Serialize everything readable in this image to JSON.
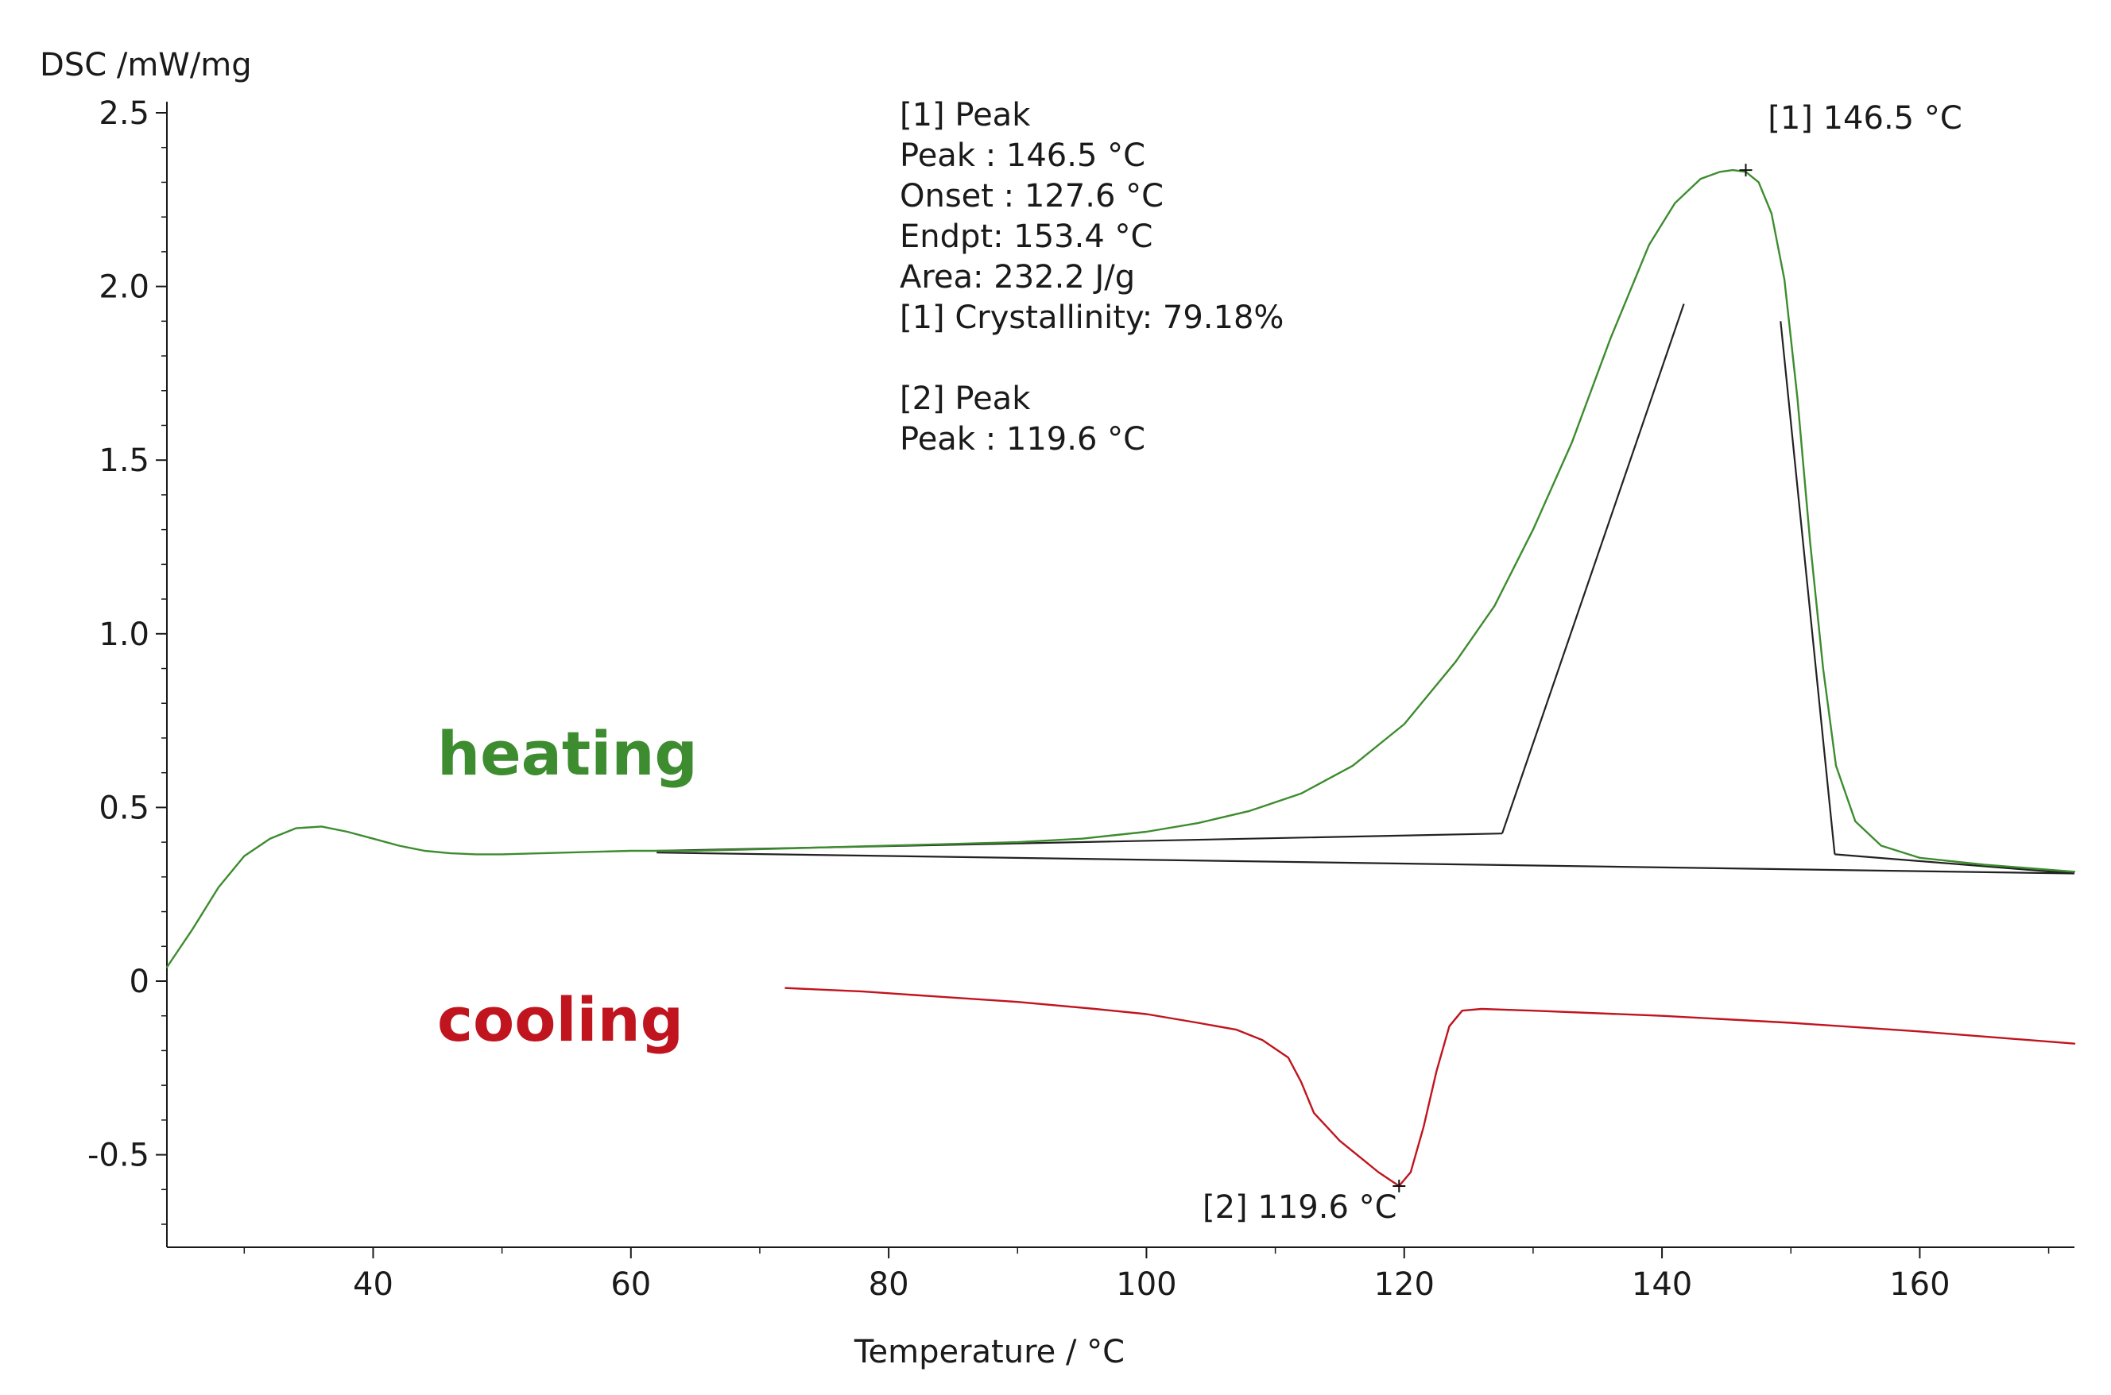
{
  "chart_data": {
    "type": "line",
    "title": "",
    "xlabel": "Temperature / °C",
    "ylabel": "DSC /mW/mg",
    "xlim": [
      24,
      172
    ],
    "ylim": [
      -0.75,
      2.5
    ],
    "x_ticks": [
      40,
      60,
      80,
      100,
      120,
      140,
      160
    ],
    "x_tick_labels": [
      "40",
      "60",
      "80",
      "100",
      "120",
      "140",
      "160"
    ],
    "y_ticks": [
      2.5,
      2.0,
      1.5,
      1.0,
      0.5,
      0,
      -0.5
    ],
    "y_tick_labels": [
      "2.5",
      "2.0",
      "1.5",
      "1.0",
      "0.5",
      "0",
      "-0.5"
    ],
    "grid": false,
    "series": [
      {
        "name": "heating",
        "color": "#3d8c2f",
        "x": [
          24,
          26,
          28,
          30,
          32,
          34,
          36,
          38,
          40,
          42,
          44,
          46,
          48,
          50,
          55,
          60,
          65,
          70,
          75,
          80,
          85,
          90,
          95,
          100,
          104,
          108,
          112,
          116,
          120,
          124,
          127,
          130,
          133,
          136,
          139,
          141,
          143,
          144.5,
          145.5,
          146.5,
          147.5,
          148.5,
          149.5,
          150.5,
          151.5,
          152.5,
          153.5,
          155,
          157,
          160,
          165,
          172
        ],
        "values": [
          0.04,
          0.15,
          0.27,
          0.36,
          0.41,
          0.44,
          0.445,
          0.43,
          0.41,
          0.39,
          0.375,
          0.368,
          0.365,
          0.365,
          0.37,
          0.375,
          0.375,
          0.38,
          0.385,
          0.39,
          0.395,
          0.4,
          0.41,
          0.43,
          0.455,
          0.49,
          0.54,
          0.62,
          0.74,
          0.92,
          1.08,
          1.3,
          1.55,
          1.85,
          2.12,
          2.24,
          2.31,
          2.33,
          2.335,
          2.33,
          2.3,
          2.21,
          2.02,
          1.68,
          1.26,
          0.9,
          0.62,
          0.46,
          0.39,
          0.355,
          0.335,
          0.315
        ]
      },
      {
        "name": "cooling",
        "color": "#c0141e",
        "x": [
          72,
          78,
          84,
          90,
          96,
          100,
          104,
          107,
          109,
          111,
          112,
          113,
          114,
          115,
          116,
          117,
          118,
          119,
          119.6,
          120.5,
          121.5,
          122.5,
          123.5,
          124.5,
          126,
          130,
          140,
          150,
          160,
          172
        ],
        "values": [
          -0.02,
          -0.03,
          -0.045,
          -0.06,
          -0.08,
          -0.095,
          -0.12,
          -0.14,
          -0.17,
          -0.22,
          -0.29,
          -0.38,
          -0.42,
          -0.46,
          -0.49,
          -0.52,
          -0.55,
          -0.575,
          -0.59,
          -0.55,
          -0.42,
          -0.26,
          -0.13,
          -0.085,
          -0.08,
          -0.085,
          -0.1,
          -0.12,
          -0.145,
          -0.18
        ]
      }
    ],
    "construction_lines": [
      {
        "name": "onset-baseline",
        "x": [
          62,
          127.6
        ],
        "values": [
          0.375,
          0.425
        ]
      },
      {
        "name": "onset-tangent",
        "x": [
          127.6,
          141.7
        ],
        "values": [
          0.425,
          1.95
        ]
      },
      {
        "name": "endpoint-tangent",
        "x": [
          149.2,
          153.4
        ],
        "values": [
          1.9,
          0.365
        ]
      },
      {
        "name": "endpoint-baseline",
        "x": [
          153.4,
          172
        ],
        "values": [
          0.365,
          0.31
        ]
      },
      {
        "name": "integration-baseline",
        "x": [
          62,
          172
        ],
        "values": [
          0.37,
          0.31
        ]
      }
    ],
    "peak_markers": [
      {
        "name": "peak-1",
        "x": 146.5,
        "y": 2.335,
        "label": "[1] 146.5 °C"
      },
      {
        "name": "peak-2",
        "x": 119.6,
        "y": -0.59,
        "label": "[2] 119.6 °C"
      }
    ],
    "series_labels": [
      {
        "text": "heating",
        "color": "#3d8c2f"
      },
      {
        "text": "cooling",
        "color": "#c0141e"
      }
    ],
    "annotation_block": [
      "[1] Peak",
      "Peak : 146.5 °C",
      "Onset : 127.6 °C",
      "Endpt: 153.4 °C",
      "Area: 232.2 J/g",
      "[1] Crystallinity: 79.18%",
      "",
      "[2] Peak",
      "Peak : 119.6  °C"
    ]
  }
}
